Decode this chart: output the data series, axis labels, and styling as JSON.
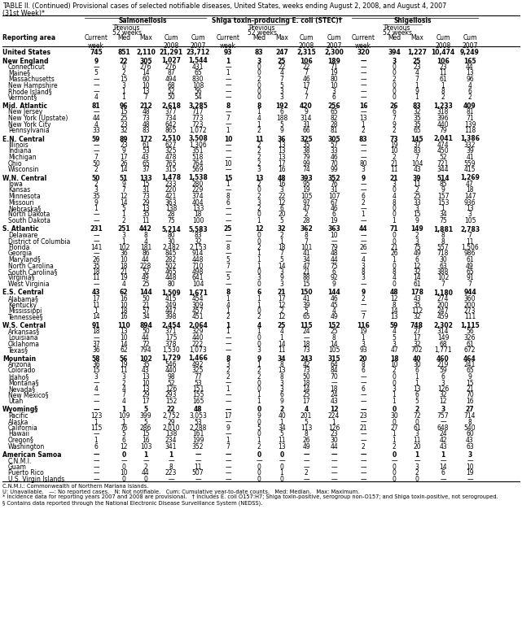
{
  "title_line1": "TABLE II. (Continued) Provisional cases of selected notifiable diseases, United States, weeks ending August 2, 2008, and August 4, 2007",
  "title_line2": "(31st Week)*",
  "col_groups": [
    "Salmonellosis",
    "Shiga toxin-producing E. coli (STEC)†",
    "Shigellosis"
  ],
  "rows": [
    [
      "United States",
      "745",
      "851",
      "2,110",
      "21,291",
      "23,712",
      "93",
      "83",
      "247",
      "2,315",
      "2,300",
      "320",
      "394",
      "1,227",
      "10,474",
      "9,249"
    ],
    [
      "New England",
      "9",
      "22",
      "305",
      "1,027",
      "1,544",
      "1",
      "3",
      "25",
      "106",
      "189",
      "—",
      "3",
      "25",
      "106",
      "165"
    ],
    [
      "Connecticut",
      "—",
      "0",
      "276",
      "276",
      "431",
      "—",
      "0",
      "22",
      "22",
      "71",
      "—",
      "0",
      "23",
      "23",
      "44"
    ],
    [
      "Maine§",
      "5",
      "2",
      "14",
      "87",
      "65",
      "1",
      "0",
      "4",
      "7",
      "19",
      "—",
      "0",
      "4",
      "11",
      "13"
    ],
    [
      "Massachusetts",
      "—",
      "15",
      "60",
      "494",
      "830",
      "—",
      "2",
      "7",
      "46",
      "80",
      "—",
      "2",
      "7",
      "61",
      "96"
    ],
    [
      "New Hampshire",
      "—",
      "3",
      "10",
      "68",
      "108",
      "—",
      "0",
      "5",
      "17",
      "10",
      "—",
      "0",
      "1",
      "1",
      "4"
    ],
    [
      "Rhode Island§",
      "—",
      "1",
      "13",
      "52",
      "56",
      "—",
      "0",
      "3",
      "7",
      "3",
      "—",
      "0",
      "9",
      "8",
      "6"
    ],
    [
      "Vermont§",
      "4",
      "1",
      "7",
      "50",
      "54",
      "—",
      "0",
      "3",
      "7",
      "6",
      "—",
      "0",
      "1",
      "2",
      "2"
    ],
    [
      "Mid. Atlantic",
      "81",
      "96",
      "212",
      "2,618",
      "3,285",
      "8",
      "8",
      "192",
      "420",
      "256",
      "16",
      "26",
      "83",
      "1,233",
      "409"
    ],
    [
      "New Jersey",
      "—",
      "15",
      "48",
      "377",
      "717",
      "—",
      "1",
      "6",
      "9",
      "65",
      "—",
      "6",
      "32",
      "318",
      "81"
    ],
    [
      "New York (Upstate)",
      "44",
      "25",
      "73",
      "734",
      "773",
      "7",
      "4",
      "188",
      "314",
      "82",
      "13",
      "7",
      "35",
      "396",
      "71"
    ],
    [
      "New York City",
      "4",
      "23",
      "48",
      "642",
      "723",
      "—",
      "1",
      "5",
      "31",
      "28",
      "1",
      "9",
      "35",
      "440",
      "139"
    ],
    [
      "Pennsylvania",
      "33",
      "32",
      "83",
      "865",
      "1,072",
      "1",
      "2",
      "9",
      "66",
      "81",
      "2",
      "2",
      "65",
      "79",
      "118"
    ],
    [
      "E.N. Central",
      "59",
      "89",
      "172",
      "2,510",
      "3,508",
      "10",
      "11",
      "36",
      "325",
      "305",
      "83",
      "73",
      "145",
      "2,041",
      "1,386"
    ],
    [
      "Illinois",
      "—",
      "23",
      "61",
      "627",
      "1,306",
      "—",
      "2",
      "13",
      "35",
      "57",
      "—",
      "19",
      "37",
      "474",
      "332"
    ],
    [
      "Indiana",
      "—",
      "9",
      "53",
      "325",
      "351",
      "—",
      "2",
      "13",
      "38",
      "33",
      "—",
      "10",
      "83",
      "450",
      "39"
    ],
    [
      "Michigan",
      "7",
      "17",
      "43",
      "478",
      "518",
      "—",
      "2",
      "13",
      "79",
      "46",
      "—",
      "2",
      "7",
      "52",
      "41"
    ],
    [
      "Ohio",
      "50",
      "26",
      "65",
      "765",
      "764",
      "10",
      "2",
      "17",
      "99",
      "70",
      "80",
      "21",
      "104",
      "721",
      "559"
    ],
    [
      "Wisconsin",
      "2",
      "14",
      "37",
      "315",
      "569",
      "—",
      "3",
      "16",
      "74",
      "99",
      "3",
      "11",
      "43",
      "344",
      "415"
    ],
    [
      "W.N. Central",
      "50",
      "51",
      "133",
      "1,478",
      "1,538",
      "15",
      "13",
      "48",
      "393",
      "352",
      "9",
      "21",
      "39",
      "514",
      "1,269"
    ],
    [
      "Iowa",
      "2",
      "9",
      "15",
      "233",
      "280",
      "1",
      "2",
      "16",
      "95",
      "76",
      "—",
      "3",
      "11",
      "85",
      "47"
    ],
    [
      "Kansas",
      "3",
      "7",
      "31",
      "220",
      "229",
      "—",
      "0",
      "3",
      "19",
      "31",
      "—",
      "0",
      "2",
      "9",
      "18"
    ],
    [
      "Minnesota",
      "35",
      "12",
      "73",
      "421",
      "374",
      "8",
      "2",
      "22",
      "105",
      "107",
      "6",
      "4",
      "25",
      "157",
      "147"
    ],
    [
      "Missouri",
      "9",
      "14",
      "29",
      "363",
      "404",
      "6",
      "3",
      "12",
      "97",
      "67",
      "2",
      "8",
      "33",
      "153",
      "936"
    ],
    [
      "Nebraska§",
      "1",
      "5",
      "13",
      "138",
      "133",
      "—",
      "2",
      "6",
      "47",
      "46",
      "—",
      "0",
      "3",
      "1",
      "13"
    ],
    [
      "North Dakota",
      "—",
      "1",
      "35",
      "28",
      "18",
      "—",
      "0",
      "20",
      "2",
      "6",
      "1",
      "0",
      "15",
      "34",
      "3"
    ],
    [
      "South Dakota",
      "—",
      "2",
      "11",
      "75",
      "100",
      "—",
      "1",
      "5",
      "28",
      "19",
      "—",
      "1",
      "9",
      "75",
      "105"
    ],
    [
      "S. Atlantic",
      "231",
      "251",
      "442",
      "5,214",
      "5,583",
      "25",
      "12",
      "32",
      "362",
      "363",
      "44",
      "71",
      "149",
      "1,881",
      "2,783"
    ],
    [
      "Delaware",
      "—",
      "3",
      "8",
      "80",
      "83",
      "—",
      "0",
      "2",
      "8",
      "10",
      "—",
      "0",
      "2",
      "8",
      "7"
    ],
    [
      "District of Columbia",
      "—",
      "1",
      "4",
      "30",
      "32",
      "—",
      "0",
      "1",
      "7",
      "—",
      "—",
      "0",
      "3",
      "8",
      "11"
    ],
    [
      "Florida",
      "141",
      "102",
      "181",
      "2,482",
      "2,153",
      "8",
      "2",
      "18",
      "101",
      "79",
      "26",
      "21",
      "75",
      "557",
      "1,506"
    ],
    [
      "Georgia",
      "—",
      "36",
      "86",
      "845",
      "914",
      "—",
      "1",
      "7",
      "41",
      "48",
      "—",
      "26",
      "49",
      "718",
      "986"
    ],
    [
      "Maryland§",
      "26",
      "10",
      "44",
      "282",
      "448",
      "5",
      "1",
      "5",
      "34",
      "44",
      "4",
      "1",
      "6",
      "30",
      "61"
    ],
    [
      "North Carolina",
      "35",
      "18",
      "228",
      "502",
      "710",
      "7",
      "1",
      "14",
      "47",
      "75",
      "3",
      "0",
      "12",
      "63",
      "49"
    ],
    [
      "South Carolina§",
      "18",
      "21",
      "52",
      "465",
      "498",
      "—",
      "0",
      "3",
      "21",
      "6",
      "8",
      "8",
      "32",
      "388",
      "65"
    ],
    [
      "Virginia§",
      "11",
      "19",
      "49",
      "448",
      "641",
      "5",
      "3",
      "9",
      "88",
      "92",
      "3",
      "4",
      "14",
      "102",
      "91"
    ],
    [
      "West Virginia",
      "—",
      "4",
      "25",
      "80",
      "104",
      "—",
      "0",
      "3",
      "15",
      "9",
      "—",
      "0",
      "61",
      "7",
      "7"
    ],
    [
      "E.S. Central",
      "43",
      "62",
      "144",
      "1,509",
      "1,671",
      "8",
      "6",
      "21",
      "150",
      "144",
      "9",
      "48",
      "178",
      "1,180",
      "944"
    ],
    [
      "Alabama§",
      "17",
      "16",
      "50",
      "415",
      "454",
      "1",
      "1",
      "17",
      "41",
      "46",
      "2",
      "12",
      "43",
      "274",
      "360"
    ],
    [
      "Kentucky",
      "11",
      "10",
      "21",
      "249",
      "309",
      "4",
      "1",
      "12",
      "39",
      "45",
      "—",
      "8",
      "35",
      "200",
      "200"
    ],
    [
      "Mississippi",
      "1",
      "18",
      "57",
      "447",
      "457",
      "1",
      "0",
      "2",
      "5",
      "4",
      "—",
      "14",
      "112",
      "247",
      "273"
    ],
    [
      "Tennessee§",
      "14",
      "16",
      "34",
      "398",
      "451",
      "2",
      "2",
      "12",
      "65",
      "49",
      "7",
      "13",
      "32",
      "459",
      "111"
    ],
    [
      "W.S. Central",
      "91",
      "110",
      "894",
      "2,454",
      "2,064",
      "1",
      "4",
      "25",
      "115",
      "152",
      "116",
      "59",
      "748",
      "2,302",
      "1,115"
    ],
    [
      "Arkansas§",
      "18",
      "13",
      "50",
      "371",
      "329",
      "1",
      "1",
      "4",
      "24",
      "25",
      "19",
      "4",
      "27",
      "314",
      "56"
    ],
    [
      "Louisiana",
      "—",
      "10",
      "44",
      "175",
      "440",
      "—",
      "0",
      "1",
      "—",
      "8",
      "1",
      "5",
      "17",
      "149",
      "326"
    ],
    [
      "Oklahoma",
      "37",
      "14",
      "72",
      "378",
      "222",
      "—",
      "0",
      "14",
      "18",
      "14",
      "3",
      "3",
      "32",
      "68",
      "61"
    ],
    [
      "Texas§",
      "36",
      "62",
      "794",
      "1,530",
      "1,073",
      "—",
      "3",
      "11",
      "73",
      "105",
      "93",
      "47",
      "702",
      "1,771",
      "672"
    ],
    [
      "Mountain",
      "58",
      "56",
      "102",
      "1,729",
      "1,466",
      "8",
      "9",
      "34",
      "243",
      "315",
      "20",
      "18",
      "40",
      "460",
      "464"
    ],
    [
      "Arizona",
      "36",
      "19",
      "35",
      "546",
      "492",
      "3",
      "1",
      "8",
      "42",
      "64",
      "8",
      "10",
      "30",
      "219",
      "241"
    ],
    [
      "Colorado",
      "15",
      "11",
      "43",
      "440",
      "325",
      "2",
      "2",
      "13",
      "73",
      "84",
      "6",
      "2",
      "6",
      "59",
      "65"
    ],
    [
      "Idaho§",
      "3",
      "3",
      "13",
      "98",
      "77",
      "2",
      "2",
      "8",
      "50",
      "70",
      "—",
      "0",
      "1",
      "6",
      "9"
    ],
    [
      "Montana§",
      "—",
      "2",
      "10",
      "52",
      "53",
      "—",
      "0",
      "3",
      "18",
      "—",
      "—",
      "0",
      "1",
      "3",
      "15"
    ],
    [
      "Nevada§",
      "4",
      "4",
      "13",
      "126",
      "151",
      "1",
      "0",
      "3",
      "14",
      "18",
      "6",
      "3",
      "13",
      "126",
      "21"
    ],
    [
      "New Mexico§",
      "—",
      "7",
      "29",
      "293",
      "155",
      "—",
      "1",
      "6",
      "25",
      "24",
      "—",
      "1",
      "6",
      "32",
      "70"
    ],
    [
      "Utah",
      "—",
      "4",
      "17",
      "152",
      "165",
      "—",
      "1",
      "9",
      "17",
      "43",
      "—",
      "1",
      "5",
      "12",
      "16"
    ],
    [
      "Wyoming§",
      "—",
      "1",
      "5",
      "22",
      "48",
      "—",
      "0",
      "2",
      "4",
      "12",
      "—",
      "0",
      "2",
      "3",
      "27"
    ],
    [
      "Pacific",
      "123",
      "109",
      "399",
      "2,752",
      "3,053",
      "17",
      "9",
      "40",
      "201",
      "224",
      "23",
      "30",
      "72",
      "757",
      "714"
    ],
    [
      "Alaska",
      "1",
      "1",
      "5",
      "29",
      "53",
      "—",
      "0",
      "1",
      "5",
      "1",
      "—",
      "0",
      "0",
      "—",
      "8"
    ],
    [
      "California",
      "115",
      "76",
      "286",
      "2,010",
      "2,288",
      "9",
      "5",
      "34",
      "113",
      "126",
      "21",
      "27",
      "61",
      "648",
      "540"
    ],
    [
      "Hawaii",
      "—",
      "5",
      "15",
      "138",
      "161",
      "—",
      "0",
      "5",
      "8",
      "23",
      "—",
      "1",
      "3",
      "24",
      "60"
    ],
    [
      "Oregon§",
      "1",
      "6",
      "16",
      "234",
      "199",
      "1",
      "1",
      "11",
      "26",
      "30",
      "—",
      "1",
      "11",
      "42",
      "43"
    ],
    [
      "Washington",
      "6",
      "12",
      "103",
      "341",
      "352",
      "7",
      "2",
      "13",
      "49",
      "44",
      "2",
      "2",
      "20",
      "43",
      "63"
    ],
    [
      "American Samoa",
      "—",
      "0",
      "1",
      "1",
      "—",
      "—",
      "0",
      "0",
      "—",
      "—",
      "—",
      "0",
      "1",
      "1",
      "3"
    ],
    [
      "C.N.M.I.",
      "—",
      "—",
      "—",
      "—",
      "—",
      "—",
      "—",
      "—",
      "—",
      "—",
      "—",
      "—",
      "—",
      "—",
      "—"
    ],
    [
      "Guam",
      "—",
      "0",
      "2",
      "8",
      "11",
      "—",
      "0",
      "0",
      "—",
      "—",
      "—",
      "0",
      "3",
      "14",
      "10"
    ],
    [
      "Puerto Rico",
      "—",
      "10",
      "44",
      "223",
      "507",
      "—",
      "0",
      "1",
      "2",
      "—",
      "—",
      "0",
      "2",
      "6",
      "19"
    ],
    [
      "U.S. Virgin Islands",
      "—",
      "0",
      "0",
      "—",
      "—",
      "—",
      "0",
      "0",
      "—",
      "—",
      "—",
      "0",
      "0",
      "—",
      "—"
    ]
  ],
  "bold_rows": [
    0,
    1,
    8,
    13,
    19,
    27,
    37,
    42,
    47,
    55,
    62
  ],
  "section_spacer_before": [
    1,
    8,
    13,
    19,
    27,
    37,
    42,
    47,
    55,
    62
  ],
  "footnotes": [
    "C.N.M.I.: Commonwealth of Northern Mariana Islands.",
    "U: Unavailable.   —: No reported cases.   N: Not notifiable.   Cum: Cumulative year-to-date counts.   Med: Median.   Max: Maximum.",
    "* Incidence data for reporting years 2007 and 2008 are provisional.   † Includes E. coli O157:H7; Shiga toxin-positive, serogroup non-O157; and Shiga toxin-positive, not serogrouped.",
    "§ Contains data reported through the National Electronic Disease Surveillance System (NEDSS)."
  ]
}
